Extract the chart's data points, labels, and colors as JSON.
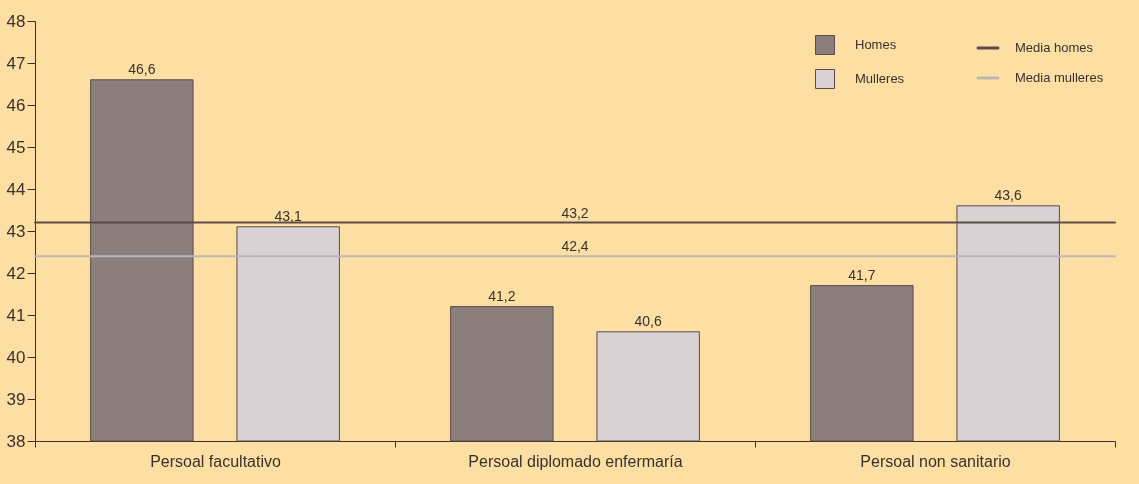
{
  "chart_data": {
    "type": "bar",
    "categories": [
      "Persoal facultativo",
      "Persoal diplomado enfermaría",
      "Persoal non sanitario"
    ],
    "series": [
      {
        "name": "Homes",
        "color": "#8b7e7c",
        "values": [
          46.6,
          41.2,
          41.7
        ],
        "value_labels": [
          "46,6",
          "41,2",
          "41,7"
        ]
      },
      {
        "name": "Mulleres",
        "color": "#d8d2d4",
        "values": [
          43.1,
          40.6,
          43.6
        ],
        "value_labels": [
          "43,1",
          "40,6",
          "43,6"
        ]
      }
    ],
    "ylim": [
      38,
      48
    ],
    "yticks": [
      38,
      39,
      40,
      41,
      42,
      43,
      44,
      45,
      46,
      47,
      48
    ],
    "ref_lines": [
      {
        "axis": "y",
        "value": 43.2,
        "label": "Media homes",
        "color": "#5a4a48"
      },
      {
        "axis": "y",
        "value": 42.4,
        "label": "Media mulleres",
        "color": "#bab6b6"
      }
    ],
    "annotations": [
      {
        "text": "43,2",
        "x": "Persoal diplomado enfermaría",
        "y": 43.2
      },
      {
        "text": "42,4",
        "x": "Persoal diplomado enfermaría",
        "y": 42.4
      }
    ],
    "grid": false,
    "legend": "top right"
  }
}
